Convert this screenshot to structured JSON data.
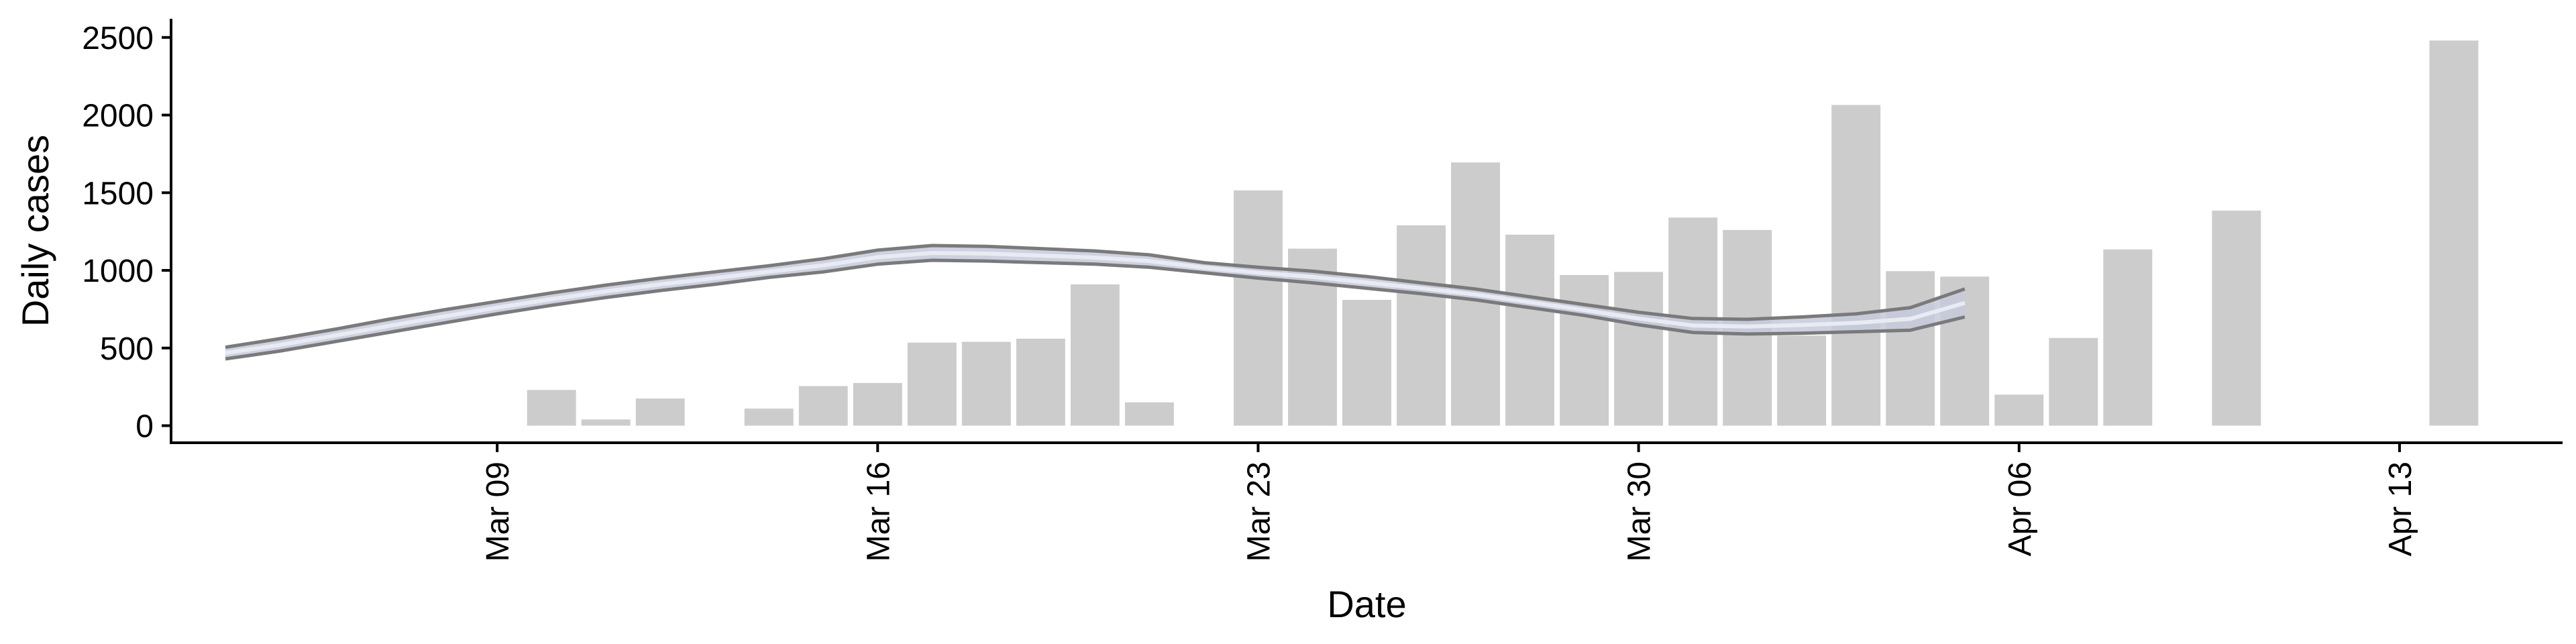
{
  "chart_data": {
    "type": "bar",
    "xlabel": "Date",
    "ylabel": "Daily cases",
    "ylim": [
      -110,
      2620
    ],
    "y_ticks": [
      "0",
      "500",
      "1000",
      "1500",
      "2000",
      "2500"
    ],
    "x_range": [
      "2020-03-03",
      "2020-04-16"
    ],
    "x_ticks": [
      {
        "date": "2020-03-09",
        "label": "Mar 09"
      },
      {
        "date": "2020-03-16",
        "label": "Mar 16"
      },
      {
        "date": "2020-03-23",
        "label": "Mar 23"
      },
      {
        "date": "2020-03-30",
        "label": "Mar 30"
      },
      {
        "date": "2020-04-06",
        "label": "Apr 06"
      },
      {
        "date": "2020-04-13",
        "label": "Apr 13"
      }
    ],
    "grid": false,
    "colors": {
      "bars": "#cccccc",
      "band_outline": "#7a7a7a",
      "band_fill": "#c5c9db",
      "center_line": "#e9ebf3",
      "axis": "#000000"
    },
    "bars": [
      {
        "date": "2020-03-10",
        "value": 230
      },
      {
        "date": "2020-03-11",
        "value": 40
      },
      {
        "date": "2020-03-12",
        "value": 175
      },
      {
        "date": "2020-03-14",
        "value": 110
      },
      {
        "date": "2020-03-15",
        "value": 255
      },
      {
        "date": "2020-03-16",
        "value": 275
      },
      {
        "date": "2020-03-17",
        "value": 535
      },
      {
        "date": "2020-03-18",
        "value": 540
      },
      {
        "date": "2020-03-19",
        "value": 560
      },
      {
        "date": "2020-03-20",
        "value": 910
      },
      {
        "date": "2020-03-21",
        "value": 150
      },
      {
        "date": "2020-03-23",
        "value": 1515
      },
      {
        "date": "2020-03-24",
        "value": 1140
      },
      {
        "date": "2020-03-25",
        "value": 810
      },
      {
        "date": "2020-03-26",
        "value": 1290
      },
      {
        "date": "2020-03-27",
        "value": 1695
      },
      {
        "date": "2020-03-28",
        "value": 1230
      },
      {
        "date": "2020-03-29",
        "value": 970
      },
      {
        "date": "2020-03-30",
        "value": 990
      },
      {
        "date": "2020-03-31",
        "value": 1340
      },
      {
        "date": "2020-04-01",
        "value": 1260
      },
      {
        "date": "2020-04-02",
        "value": 580
      },
      {
        "date": "2020-04-03",
        "value": 2065
      },
      {
        "date": "2020-04-04",
        "value": 995
      },
      {
        "date": "2020-04-05",
        "value": 960
      },
      {
        "date": "2020-04-06",
        "value": 200
      },
      {
        "date": "2020-04-07",
        "value": 565
      },
      {
        "date": "2020-04-08",
        "value": 1135
      },
      {
        "date": "2020-04-10",
        "value": 1385
      },
      {
        "date": "2020-04-14",
        "value": 2480
      }
    ],
    "band": {
      "dates": [
        "2020-03-04",
        "2020-03-05",
        "2020-03-06",
        "2020-03-07",
        "2020-03-08",
        "2020-03-09",
        "2020-03-10",
        "2020-03-11",
        "2020-03-12",
        "2020-03-13",
        "2020-03-14",
        "2020-03-15",
        "2020-03-16",
        "2020-03-17",
        "2020-03-18",
        "2020-03-19",
        "2020-03-20",
        "2020-03-21",
        "2020-03-22",
        "2020-03-23",
        "2020-03-24",
        "2020-03-25",
        "2020-03-26",
        "2020-03-27",
        "2020-03-28",
        "2020-03-29",
        "2020-03-30",
        "2020-03-31",
        "2020-04-01",
        "2020-04-02",
        "2020-04-03",
        "2020-04-04",
        "2020-04-05"
      ],
      "upper": [
        505,
        560,
        620,
        685,
        745,
        800,
        855,
        905,
        950,
        990,
        1030,
        1075,
        1130,
        1160,
        1155,
        1140,
        1125,
        1100,
        1050,
        1020,
        995,
        960,
        920,
        880,
        830,
        780,
        730,
        690,
        685,
        700,
        720,
        760,
        880
      ],
      "lower": [
        430,
        480,
        540,
        600,
        660,
        720,
        775,
        825,
        870,
        910,
        955,
        990,
        1040,
        1065,
        1060,
        1050,
        1040,
        1020,
        985,
        950,
        920,
        885,
        850,
        810,
        760,
        710,
        650,
        600,
        590,
        595,
        605,
        615,
        700
      ],
      "center": [
        468,
        520,
        580,
        642,
        702,
        760,
        815,
        865,
        910,
        950,
        992,
        1032,
        1085,
        1112,
        1108,
        1095,
        1082,
        1060,
        1018,
        985,
        958,
        922,
        885,
        845,
        795,
        745,
        690,
        645,
        638,
        648,
        662,
        688,
        790
      ]
    }
  }
}
